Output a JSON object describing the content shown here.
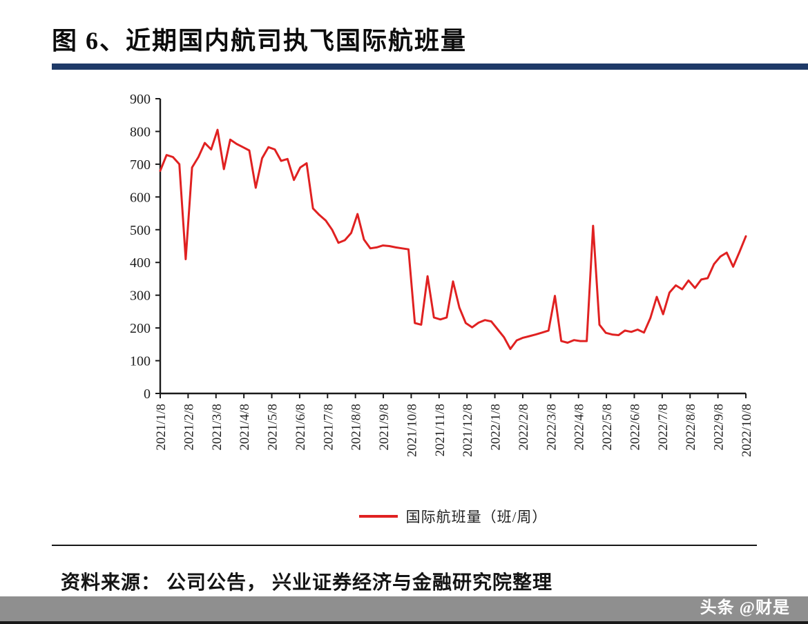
{
  "title": "图 6、近期国内航司执飞国际航班量",
  "source": "资料来源： 公司公告， 兴业证券经济与金融研究院整理",
  "watermark": "头条 @财是",
  "colors": {
    "accent_navy": "#1e3a68",
    "line_red": "#e02121",
    "watermark_bar": "#8f8f8f"
  },
  "chart_data": {
    "type": "line",
    "title": "近期国内航司执飞国际航班量",
    "legend": "国际航班量（班/周）",
    "legend_position": "bottom-center",
    "grid": false,
    "ylim": [
      0,
      900
    ],
    "y_ticks": [
      0,
      100,
      200,
      300,
      400,
      500,
      600,
      700,
      800,
      900
    ],
    "x_tick_labels": [
      "2021/1/8",
      "2021/2/8",
      "2021/3/8",
      "2021/4/8",
      "2021/5/8",
      "2021/6/8",
      "2021/7/8",
      "2021/8/8",
      "2021/9/8",
      "2021/10/8",
      "2021/11/8",
      "2021/12/8",
      "2022/1/8",
      "2022/2/8",
      "2022/3/8",
      "2022/4/8",
      "2022/5/8",
      "2022/6/8",
      "2022/7/8",
      "2022/8/8",
      "2022/9/8",
      "2022/10/8"
    ],
    "x_note": "weekly observations from 2021/1/8 to 2022/10/8",
    "series": [
      {
        "name": "国际航班量（班/周）",
        "color": "#e02121",
        "values": [
          680,
          728,
          722,
          700,
          410,
          690,
          722,
          765,
          745,
          805,
          685,
          775,
          762,
          752,
          742,
          628,
          718,
          752,
          745,
          710,
          716,
          652,
          690,
          703,
          565,
          545,
          528,
          500,
          460,
          468,
          490,
          548,
          470,
          443,
          446,
          452,
          450,
          446,
          443,
          440,
          215,
          210,
          358,
          232,
          226,
          232,
          342,
          262,
          215,
          202,
          216,
          224,
          220,
          196,
          172,
          136,
          162,
          170,
          175,
          180,
          186,
          192,
          298,
          160,
          155,
          163,
          160,
          160,
          512,
          210,
          185,
          180,
          178,
          192,
          188,
          195,
          186,
          230,
          295,
          242,
          308,
          330,
          318,
          345,
          322,
          348,
          352,
          395,
          418,
          430,
          387,
          432,
          480
        ]
      }
    ]
  }
}
